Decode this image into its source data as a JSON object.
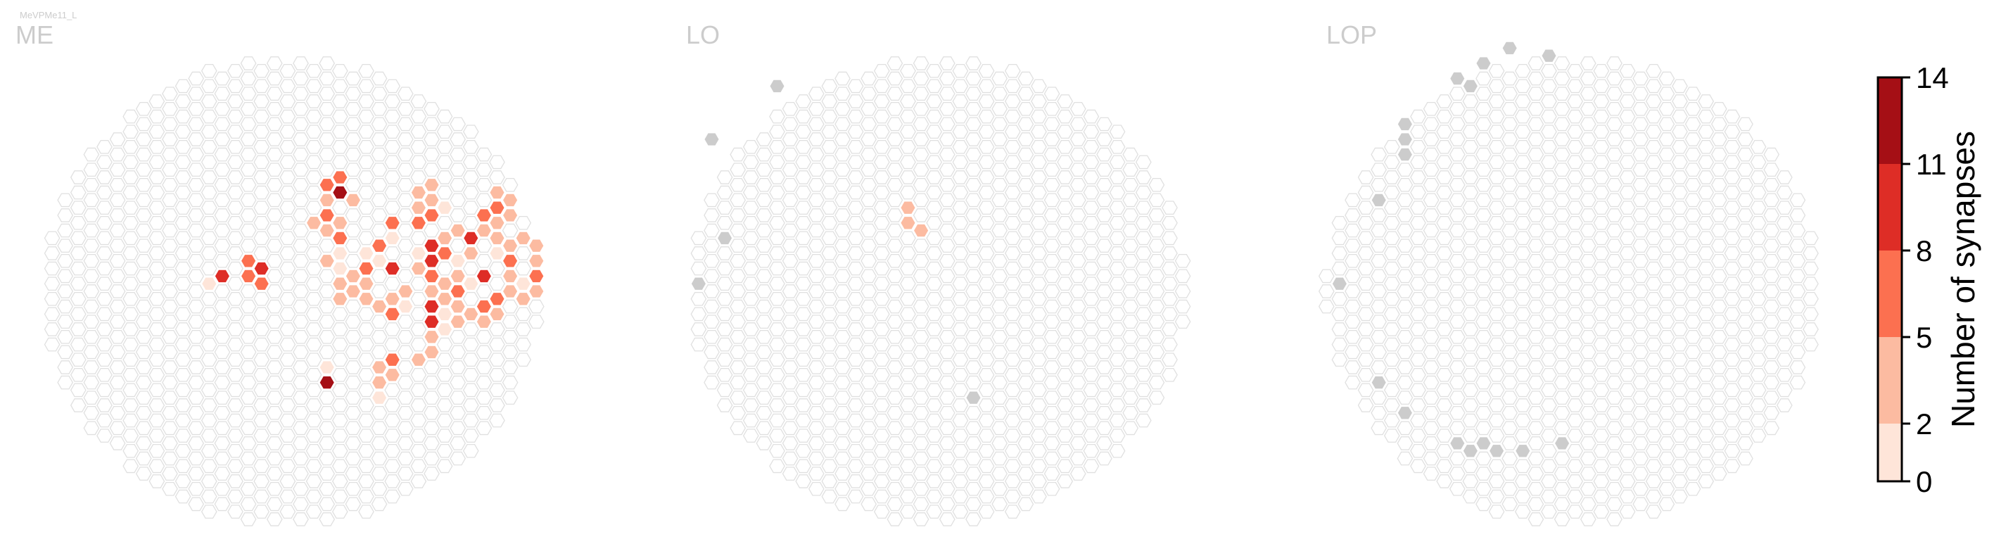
{
  "figure": {
    "cell_type": "MeVPMe11_L",
    "colorbar_label": "Number of synapses"
  },
  "colors": {
    "empty_hex_stroke": "#e0e0e0",
    "empty_hex_fill": "#ffffff",
    "no_column_fill": "#cccccc",
    "panel_title": "#cccccc",
    "bins": [
      "#fee5d9",
      "#fcbba1",
      "#fc7050",
      "#de2d26",
      "#a50f15"
    ]
  },
  "chart_data": [
    {
      "type": "heatmap",
      "title": "ME",
      "grid": "hexagonal column map",
      "nonzero_cells": [
        {
          "col": 15,
          "row": -1,
          "value": 2
        },
        {
          "col": 16,
          "row": -3,
          "value": 4
        },
        {
          "col": 16,
          "row": -2,
          "value": 9
        },
        {
          "col": 16,
          "row": 1,
          "value": 5
        },
        {
          "col": 17,
          "row": 2,
          "value": 2
        },
        {
          "col": 17,
          "row": 4,
          "value": 5
        },
        {
          "col": 18,
          "row": -4,
          "value": 6
        },
        {
          "col": 18,
          "row": -2,
          "value": 7
        },
        {
          "col": 18,
          "row": 1,
          "value": 4
        },
        {
          "col": 18,
          "row": 3,
          "value": 7
        },
        {
          "col": 18,
          "row": 5,
          "value": 7
        },
        {
          "col": 19,
          "row": -3,
          "value": 9
        },
        {
          "col": 19,
          "row": -1,
          "value": 7
        },
        {
          "col": 19,
          "row": 2,
          "value": 8
        },
        {
          "col": 19,
          "row": 4,
          "value": 7
        },
        {
          "col": 19,
          "row": 6,
          "value": 4
        },
        {
          "col": 19,
          "row": 8,
          "value": 7
        },
        {
          "col": 20,
          "row": -5,
          "value": 2
        },
        {
          "col": 20,
          "row": -3,
          "value": 9
        },
        {
          "col": 20,
          "row": -1,
          "value": 6
        },
        {
          "col": 20,
          "row": 1,
          "value": 6
        },
        {
          "col": 20,
          "row": 3,
          "value": 5
        },
        {
          "col": 20,
          "row": 5,
          "value": 9
        },
        {
          "col": 20,
          "row": 7,
          "value": 4
        },
        {
          "col": 20,
          "row": 9,
          "value": 3
        },
        {
          "col": 20,
          "row": 11,
          "value": 2
        },
        {
          "col": 21,
          "row": -6,
          "value": 3
        },
        {
          "col": 21,
          "row": -2,
          "value": 9
        },
        {
          "col": 21,
          "row": 0,
          "value": 7
        },
        {
          "col": 21,
          "row": 2,
          "value": 9
        },
        {
          "col": 21,
          "row": 4,
          "value": 10
        },
        {
          "col": 21,
          "row": 6,
          "value": 3
        },
        {
          "col": 21,
          "row": 8,
          "value": 6
        },
        {
          "col": 22,
          "row": -13,
          "value": 4
        },
        {
          "col": 22,
          "row": -5,
          "value": 3
        },
        {
          "col": 22,
          "row": -1,
          "value": 6
        },
        {
          "col": 22,
          "row": 3,
          "value": 8
        },
        {
          "col": 22,
          "row": 5,
          "value": 2
        },
        {
          "col": 22,
          "row": 7,
          "value": 4
        },
        {
          "col": 23,
          "row": -9,
          "value": 3
        },
        {
          "col": 23,
          "row": -6,
          "value": 6
        },
        {
          "col": 23,
          "row": -4,
          "value": 3
        },
        {
          "col": 23,
          "row": -2,
          "value": 7
        },
        {
          "col": 23,
          "row": 0,
          "value": 4
        },
        {
          "col": 23,
          "row": 2,
          "value": 5
        },
        {
          "col": 23,
          "row": 4,
          "value": 3
        },
        {
          "col": 23,
          "row": 6,
          "value": 5
        },
        {
          "col": 23,
          "row": 8,
          "value": 5
        },
        {
          "col": 24,
          "row": -14,
          "value": 6
        },
        {
          "col": 24,
          "row": -12,
          "value": 3
        },
        {
          "col": 24,
          "row": -10,
          "value": 7
        },
        {
          "col": 24,
          "row": -8,
          "value": 4
        },
        {
          "col": 24,
          "row": -4,
          "value": 3
        },
        {
          "col": 24,
          "row": -1,
          "value": 4
        },
        {
          "col": 24,
          "row": 1,
          "value": 7
        },
        {
          "col": 24,
          "row": 3,
          "value": 9
        },
        {
          "col": 24,
          "row": 5,
          "value": 7
        },
        {
          "col": 24,
          "row": 7,
          "value": 10
        },
        {
          "col": 24,
          "row": 10,
          "value": 2
        },
        {
          "col": 24,
          "row": 12,
          "value": 14
        },
        {
          "col": 25,
          "row": -15,
          "value": 7
        },
        {
          "col": 25,
          "row": -13,
          "value": 12
        },
        {
          "col": 25,
          "row": -9,
          "value": 3
        },
        {
          "col": 25,
          "row": -7,
          "value": 6
        },
        {
          "col": 25,
          "row": -5,
          "value": 2
        },
        {
          "col": 25,
          "row": -3,
          "value": 2
        },
        {
          "col": 25,
          "row": -1,
          "value": 3
        },
        {
          "col": 25,
          "row": 1,
          "value": 5
        },
        {
          "col": 25,
          "row": 4,
          "value": 8
        },
        {
          "col": 25,
          "row": 6,
          "value": 11
        },
        {
          "col": 25,
          "row": 8,
          "value": 3
        },
        {
          "col": 26,
          "row": -12,
          "value": 4
        },
        {
          "col": 26,
          "row": -7,
          "value": 3
        },
        {
          "col": 26,
          "row": -5,
          "value": 6
        },
        {
          "col": 26,
          "row": -3,
          "value": 3
        },
        {
          "col": 26,
          "row": -2,
          "value": 3
        },
        {
          "col": 26,
          "row": 0,
          "value": 4
        },
        {
          "col": 26,
          "row": 3,
          "value": 3
        },
        {
          "col": 26,
          "row": 5,
          "value": 6
        },
        {
          "col": 26,
          "row": 7,
          "value": 2
        },
        {
          "col": 27,
          "row": -10,
          "value": 5
        },
        {
          "col": 27,
          "row": -5,
          "value": 2
        },
        {
          "col": 27,
          "row": -3,
          "value": 6
        },
        {
          "col": 27,
          "row": -1,
          "value": 5
        },
        {
          "col": 27,
          "row": 1,
          "value": 4
        },
        {
          "col": 27,
          "row": 4,
          "value": 2
        },
        {
          "col": 27,
          "row": 8,
          "value": 5
        },
        {
          "col": 27,
          "row": 10,
          "value": 4
        },
        {
          "col": 28,
          "row": -6,
          "value": 7
        },
        {
          "col": 28,
          "row": -4,
          "value": 2
        },
        {
          "col": 28,
          "row": 2,
          "value": 3
        },
        {
          "col": 28,
          "row": 5,
          "value": 6
        },
        {
          "col": 28,
          "row": 7,
          "value": 3
        },
        {
          "col": 28,
          "row": 10,
          "value": 4
        },
        {
          "col": 28,
          "row": 12,
          "value": 5
        },
        {
          "col": 28,
          "row": 14,
          "value": 2
        },
        {
          "col": 29,
          "row": -9,
          "value": 6
        },
        {
          "col": 29,
          "row": -7,
          "value": 2
        },
        {
          "col": 29,
          "row": -3,
          "value": 9
        },
        {
          "col": 29,
          "row": 1,
          "value": 3
        },
        {
          "col": 29,
          "row": 3,
          "value": 7
        },
        {
          "col": 29,
          "row": 9,
          "value": 6
        },
        {
          "col": 29,
          "row": 11,
          "value": 3
        },
        {
          "col": 30,
          "row": -13,
          "value": 3
        },
        {
          "col": 30,
          "row": 0,
          "value": 3
        },
        {
          "col": 30,
          "row": 2,
          "value": 2
        },
        {
          "col": 31,
          "row": -13,
          "value": 4
        },
        {
          "col": 31,
          "row": -11,
          "value": 5
        },
        {
          "col": 31,
          "row": -9,
          "value": 8
        },
        {
          "col": 31,
          "row": -5,
          "value": 2
        },
        {
          "col": 31,
          "row": -3,
          "value": 3
        },
        {
          "col": 31,
          "row": 0,
          "value": 4
        },
        {
          "col": 31,
          "row": 2,
          "value": 5
        },
        {
          "col": 31,
          "row": 4,
          "value": 3
        },
        {
          "col": 31,
          "row": 6,
          "value": 2
        },
        {
          "col": 31,
          "row": 9,
          "value": 5
        },
        {
          "col": 32,
          "row": -14,
          "value": 3
        },
        {
          "col": 32,
          "row": -12,
          "value": 3
        },
        {
          "col": 32,
          "row": -10,
          "value": 7
        },
        {
          "col": 32,
          "row": -6,
          "value": 9
        },
        {
          "col": 32,
          "row": -4,
          "value": 9
        },
        {
          "col": 32,
          "row": -2,
          "value": 7
        },
        {
          "col": 32,
          "row": 0,
          "value": 5
        },
        {
          "col": 32,
          "row": 2,
          "value": 9
        },
        {
          "col": 32,
          "row": 4,
          "value": 9
        },
        {
          "col": 32,
          "row": 6,
          "value": 5
        },
        {
          "col": 32,
          "row": 8,
          "value": 3
        },
        {
          "col": 33,
          "row": -11,
          "value": 2
        },
        {
          "col": 33,
          "row": -7,
          "value": 3
        },
        {
          "col": 33,
          "row": -5,
          "value": 7
        },
        {
          "col": 33,
          "row": -1,
          "value": 4
        },
        {
          "col": 33,
          "row": 1,
          "value": 3
        },
        {
          "col": 33,
          "row": 3,
          "value": 2
        },
        {
          "col": 33,
          "row": 5,
          "value": 2
        },
        {
          "col": 34,
          "row": -8,
          "value": 4
        },
        {
          "col": 34,
          "row": -4,
          "value": 2
        },
        {
          "col": 34,
          "row": -2,
          "value": 3
        },
        {
          "col": 34,
          "row": 0,
          "value": 6
        },
        {
          "col": 34,
          "row": 2,
          "value": 4
        },
        {
          "col": 34,
          "row": 4,
          "value": 3
        },
        {
          "col": 35,
          "row": -7,
          "value": 10
        },
        {
          "col": 35,
          "row": -5,
          "value": 3
        },
        {
          "col": 35,
          "row": -1,
          "value": 2
        },
        {
          "col": 35,
          "row": 3,
          "value": 3
        },
        {
          "col": 36,
          "row": -10,
          "value": 6
        },
        {
          "col": 36,
          "row": -8,
          "value": 4
        },
        {
          "col": 36,
          "row": -2,
          "value": 9
        },
        {
          "col": 36,
          "row": 2,
          "value": 6
        },
        {
          "col": 36,
          "row": 4,
          "value": 4
        },
        {
          "col": 37,
          "row": -13,
          "value": 5
        },
        {
          "col": 37,
          "row": -11,
          "value": 7
        },
        {
          "col": 37,
          "row": -9,
          "value": 3
        },
        {
          "col": 37,
          "row": -7,
          "value": 5
        },
        {
          "col": 37,
          "row": -5,
          "value": 2
        },
        {
          "col": 37,
          "row": 1,
          "value": 6
        },
        {
          "col": 37,
          "row": 3,
          "value": 4
        },
        {
          "col": 38,
          "row": -12,
          "value": 4
        },
        {
          "col": 38,
          "row": -10,
          "value": 4
        },
        {
          "col": 38,
          "row": -6,
          "value": 3
        },
        {
          "col": 38,
          "row": -4,
          "value": 6
        },
        {
          "col": 38,
          "row": -2,
          "value": 3
        },
        {
          "col": 38,
          "row": 0,
          "value": 4
        },
        {
          "col": 39,
          "row": -7,
          "value": 3
        },
        {
          "col": 39,
          "row": -1,
          "value": 2
        },
        {
          "col": 39,
          "row": 1,
          "value": 4
        },
        {
          "col": 40,
          "row": -6,
          "value": 4
        },
        {
          "col": 40,
          "row": -4,
          "value": 3
        },
        {
          "col": 40,
          "row": -2,
          "value": 6
        },
        {
          "col": 40,
          "row": 0,
          "value": 3
        },
        {
          "col": 41,
          "row": -5,
          "value": 3
        },
        {
          "col": 41,
          "row": -3,
          "value": 3
        },
        {
          "col": 41,
          "row": -1,
          "value": 10
        },
        {
          "col": 41,
          "row": 1,
          "value": 2
        },
        {
          "col": 42,
          "row": -4,
          "value": 2
        },
        {
          "col": 42,
          "row": -2,
          "value": 3
        },
        {
          "col": 42,
          "row": 0,
          "value": 4
        },
        {
          "col": 43,
          "row": -3,
          "value": 4
        }
      ]
    },
    {
      "type": "heatmap",
      "title": "LO",
      "grid": "hexagonal column map",
      "nonzero_cells": [
        {
          "col": 17,
          "row": -11,
          "value": 4
        },
        {
          "col": 17,
          "row": -9,
          "value": 4
        },
        {
          "col": 18,
          "row": -8,
          "value": 4
        }
      ]
    },
    {
      "type": "heatmap",
      "title": "LOP",
      "grid": "hexagonal column map",
      "nonzero_cells": []
    }
  ],
  "colorbar": {
    "ticks": [
      "0",
      "2",
      "5",
      "8",
      "11",
      "14"
    ],
    "bounds": [
      0,
      2,
      5,
      8,
      11,
      14
    ],
    "min": 0,
    "max": 14
  }
}
